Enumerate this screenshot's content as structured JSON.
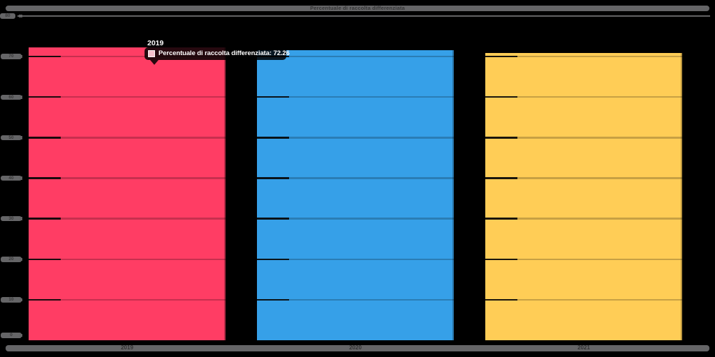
{
  "colors": {
    "background": "#000000",
    "label_strip": "#656567",
    "top_gridline": "#626264",
    "tooltip_background": "rgba(0,0,0,0.85)",
    "tooltip_text": "#ffffff",
    "tooltip_swatch": "#F5C2CE"
  },
  "title_bar": {
    "text": "Percentuale di raccolta differenziata"
  },
  "tooltip": {
    "title": "2019",
    "body": "Percentuale di raccolta differenziata: 72.26",
    "label": "Percentuale di raccolta differenziata",
    "value": "72.26"
  },
  "chart_data": {
    "type": "bar",
    "title": "Percentuale di raccolta differenziata",
    "categories": [
      "2019",
      "2020",
      "2021"
    ],
    "series": [
      {
        "name": "Percentuale di raccolta differenziata",
        "values": [
          72.26,
          71.6,
          70.9
        ]
      }
    ],
    "bar_colors": [
      "#FF3D64",
      "#36A0E8",
      "#FFCD56"
    ],
    "xlabel": "",
    "ylabel": "",
    "ylim": [
      0,
      80
    ],
    "ytick_step": 10,
    "yticks": [
      0,
      10,
      20,
      30,
      40,
      50,
      60,
      70,
      80
    ],
    "grid": true,
    "legend_position": "none",
    "hovered_bar": "2019"
  }
}
